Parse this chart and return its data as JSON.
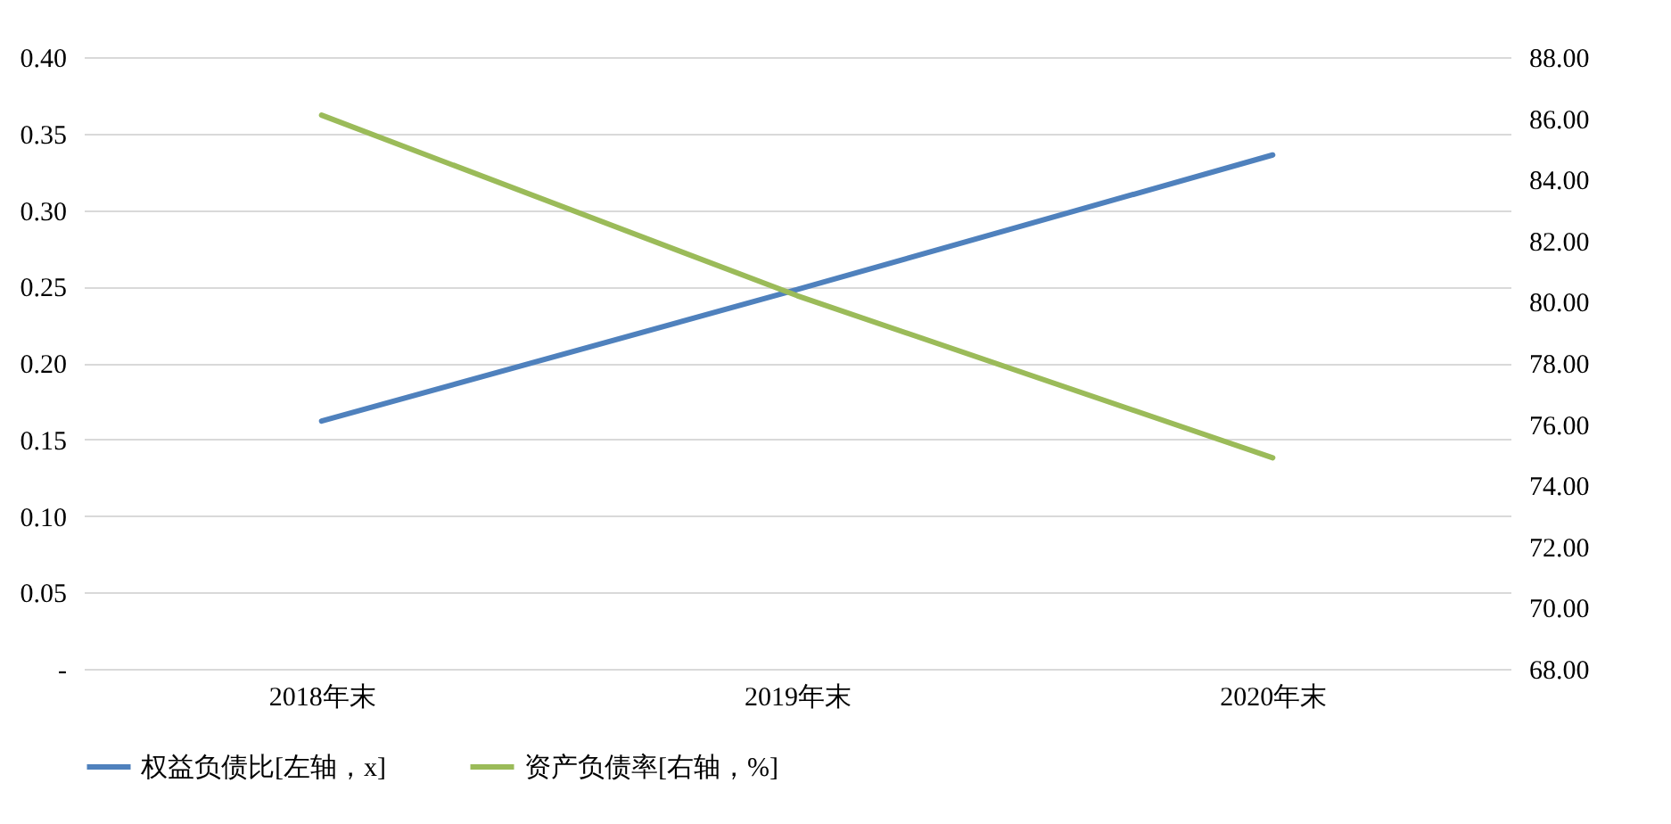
{
  "chart_data": {
    "type": "line",
    "categories": [
      "2018年末",
      "2019年末",
      "2020年末"
    ],
    "series": [
      {
        "name": "权益负债比[左轴，x]",
        "color": "#4f81bd",
        "values": [
          0.162,
          0.248,
          0.336
        ]
      },
      {
        "name": "资产负债率[右轴，%]",
        "color": "#9bbb59",
        "values": [
          86.1,
          80.2,
          74.9
        ],
        "axis": "y2"
      }
    ],
    "ylim": [
      0,
      0.4
    ],
    "yticks": [
      {
        "value": 0,
        "label": "-"
      },
      {
        "value": 0.05,
        "label": "0.05"
      },
      {
        "value": 0.1,
        "label": "0.10"
      },
      {
        "value": 0.15,
        "label": "0.15"
      },
      {
        "value": 0.2,
        "label": "0.20"
      },
      {
        "value": 0.25,
        "label": "0.25"
      },
      {
        "value": 0.3,
        "label": "0.30"
      },
      {
        "value": 0.35,
        "label": "0.35"
      },
      {
        "value": 0.4,
        "label": "0.40"
      }
    ],
    "y2lim": [
      68,
      88
    ],
    "y2ticks": [
      {
        "value": 68,
        "label": "68.00"
      },
      {
        "value": 70,
        "label": "70.00"
      },
      {
        "value": 72,
        "label": "72.00"
      },
      {
        "value": 74,
        "label": "74.00"
      },
      {
        "value": 76,
        "label": "76.00"
      },
      {
        "value": 78,
        "label": "78.00"
      },
      {
        "value": 80,
        "label": "80.00"
      },
      {
        "value": 82,
        "label": "82.00"
      },
      {
        "value": 84,
        "label": "84.00"
      },
      {
        "value": 86,
        "label": "86.00"
      },
      {
        "value": 88,
        "label": "88.00"
      }
    ],
    "grid": "y",
    "legend": "bottom",
    "marker": "none",
    "line_style": "solid"
  }
}
